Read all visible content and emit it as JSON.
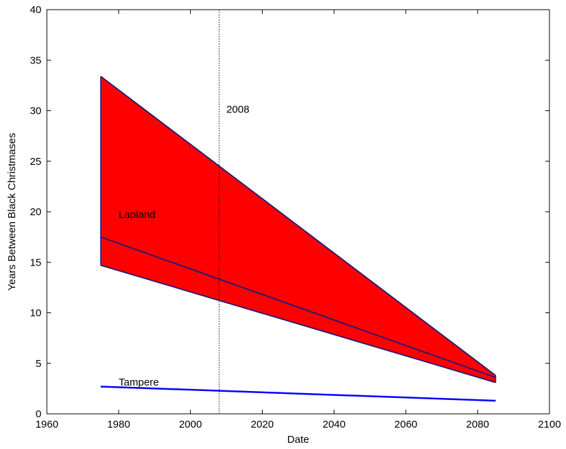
{
  "chart_data": {
    "type": "line",
    "title": "",
    "xlabel": "Date",
    "ylabel": "Years Between Black Christmases",
    "xlim": [
      1960,
      2100
    ],
    "ylim": [
      0,
      40
    ],
    "xticks": [
      1960,
      1980,
      2000,
      2020,
      2040,
      2060,
      2080,
      2100
    ],
    "yticks": [
      0,
      5,
      10,
      15,
      20,
      25,
      30,
      35,
      40
    ],
    "grid": false,
    "series": [
      {
        "name": "Lapland",
        "kind": "band-upper",
        "x": [
          1975,
          2085
        ],
        "y": [
          33.4,
          3.8
        ],
        "color": "#1a1a7a"
      },
      {
        "name": "Lapland",
        "kind": "band-center",
        "x": [
          1975,
          2085
        ],
        "y": [
          17.5,
          3.6
        ],
        "color": "#1a1a7a"
      },
      {
        "name": "Lapland",
        "kind": "band-lower",
        "x": [
          1975,
          2085
        ],
        "y": [
          14.7,
          3.1
        ],
        "color": "#1a1a7a"
      },
      {
        "name": "Tampere",
        "kind": "line",
        "x": [
          1975,
          2085
        ],
        "y": [
          2.7,
          1.3
        ],
        "color": "#0000ff"
      }
    ],
    "band_fill_color": "#ff0000",
    "reference_line": {
      "x": 2008,
      "label": "2008",
      "style": "dotted"
    },
    "annotations": [
      {
        "text": "Lapland",
        "x": 1980,
        "y": 19.4
      },
      {
        "text": "Tampere",
        "x": 1980,
        "y": 2.8
      },
      {
        "text": "2008",
        "x": 2010,
        "y": 29.8
      }
    ]
  }
}
